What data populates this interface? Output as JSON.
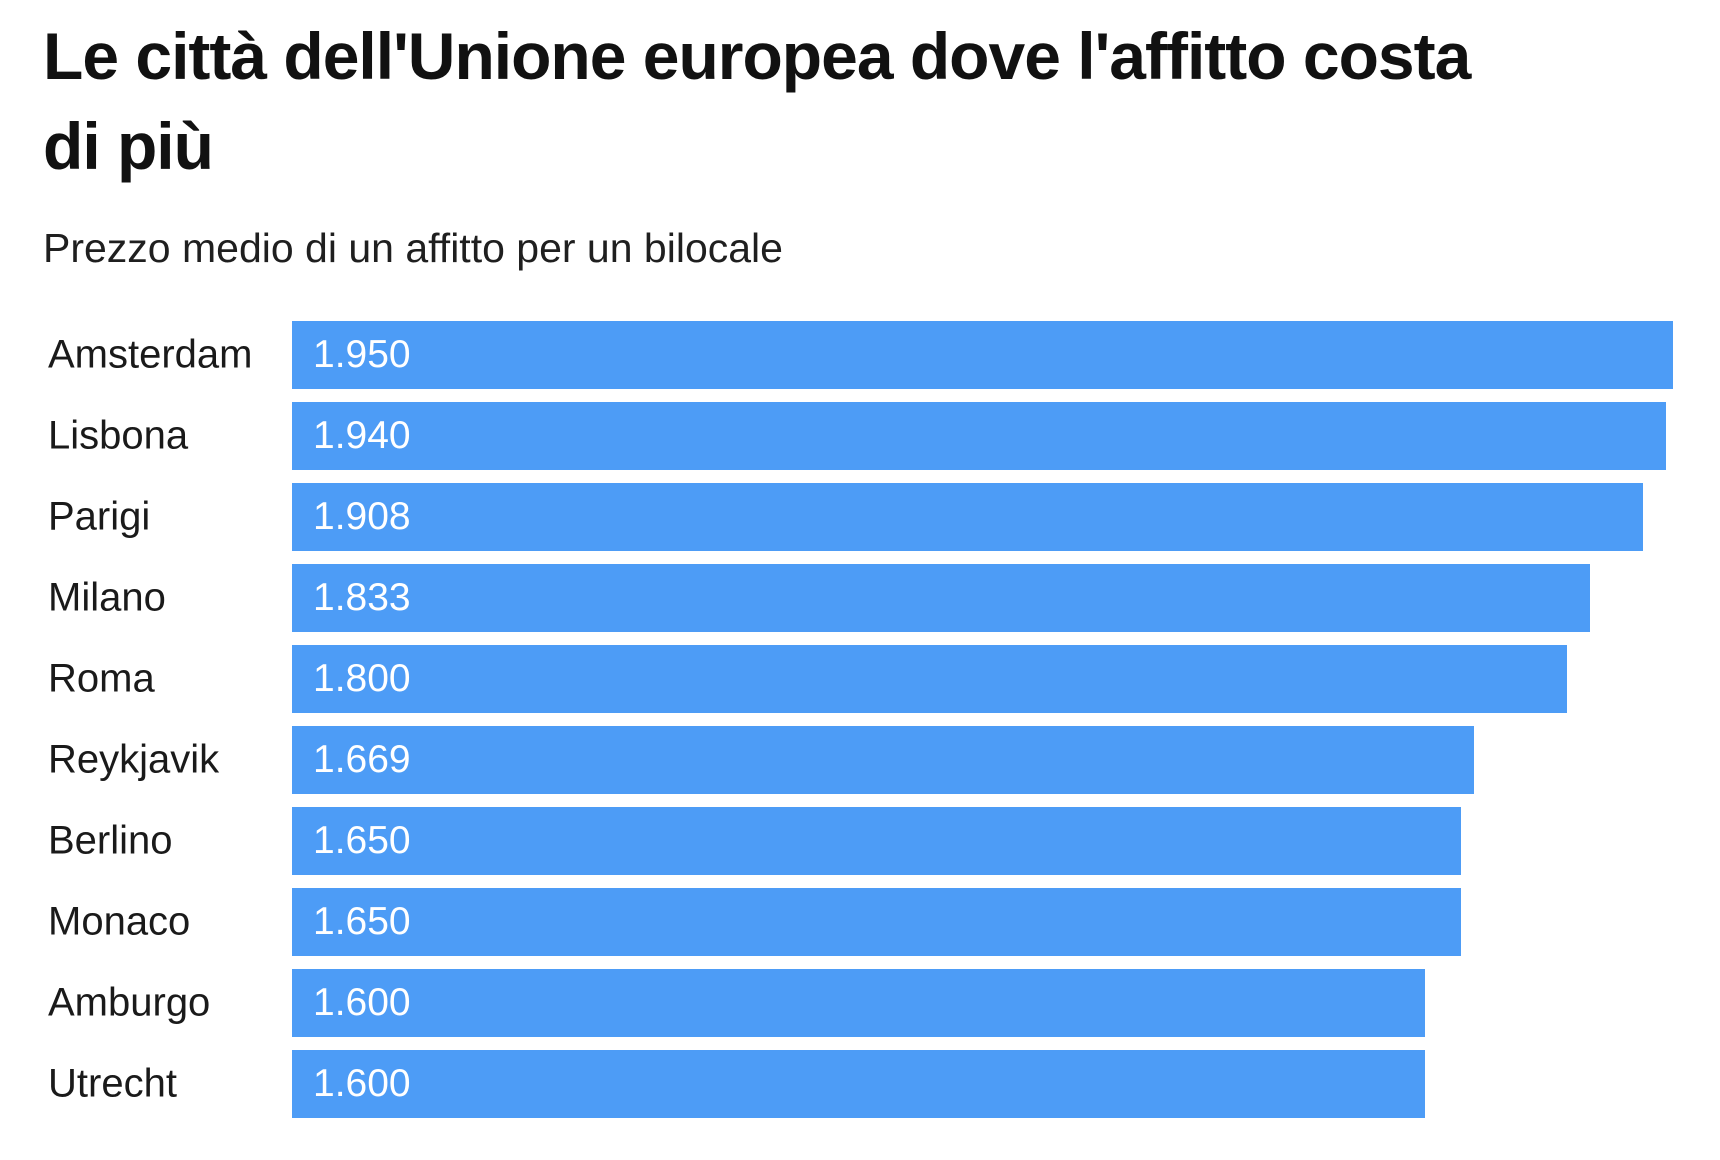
{
  "header": {
    "title_line1": "Le città dell'Unione europea dove l'affitto costa",
    "title_line2": "di più",
    "subtitle": "Prezzo medio di un affitto per un bilocale"
  },
  "chart_data": {
    "type": "bar",
    "orientation": "horizontal",
    "title": "Le città dell'Unione europea dove l'affitto costa di più",
    "subtitle": "Prezzo medio di un affitto per un bilocale",
    "categories": [
      "Amsterdam",
      "Lisbona",
      "Parigi",
      "Milano",
      "Roma",
      "Reykjavik",
      "Berlino",
      "Monaco",
      "Amburgo",
      "Utrecht"
    ],
    "values": [
      1950,
      1940,
      1908,
      1833,
      1800,
      1669,
      1650,
      1650,
      1600,
      1600
    ],
    "value_labels": [
      "1.950",
      "1.940",
      "1.908",
      "1.833",
      "1.800",
      "1.669",
      "1.650",
      "1.650",
      "1.600",
      "1.600"
    ],
    "xlim": [
      0,
      1950
    ],
    "grid": "off",
    "legend": "none",
    "bar_color": "#4D9CF6",
    "value_text_color": "#FFFFFF"
  }
}
